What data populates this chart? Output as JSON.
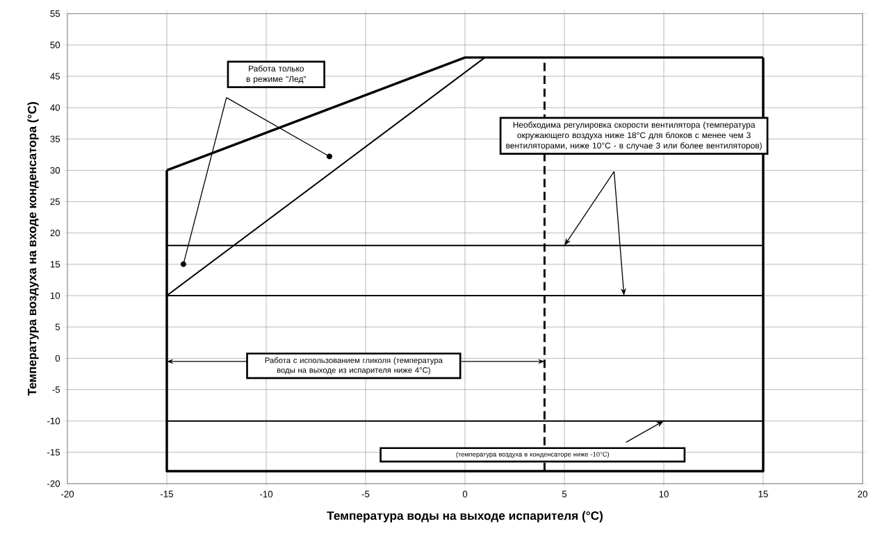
{
  "chart_data": {
    "type": "line",
    "xlabel": "Температура воды на выходе испарителя (°C)",
    "ylabel": "Температура воздуха на входе конденсатора (°C)",
    "xlim": [
      -20,
      20
    ],
    "xticks": [
      -20,
      -15,
      -10,
      -5,
      0,
      5,
      10,
      15,
      20
    ],
    "ylim": [
      -20,
      55
    ],
    "yticks": [
      -20,
      -15,
      -10,
      -5,
      0,
      5,
      10,
      15,
      20,
      25,
      30,
      35,
      40,
      45,
      50,
      55
    ],
    "grid": true,
    "marker": "none",
    "series": [
      {
        "color": "#000000",
        "x": [
          -15,
          0,
          15
        ],
        "values": [
          30,
          48,
          48
        ]
      },
      {
        "color": "#000000",
        "x": [
          -15,
          -15,
          15,
          15
        ],
        "values": [
          30,
          -18,
          -18,
          48
        ]
      },
      {
        "color": "#000000",
        "x": [
          -15,
          1
        ],
        "values": [
          10,
          48
        ]
      },
      {
        "color": "#000000",
        "x": [
          -15,
          15
        ],
        "values": [
          18,
          18
        ]
      },
      {
        "color": "#000000",
        "x": [
          -15,
          15
        ],
        "values": [
          10,
          10
        ]
      },
      {
        "color": "#000000",
        "x": [
          -15,
          15
        ],
        "values": [
          -10,
          -10
        ]
      },
      {
        "color": "#000000",
        "x": [
          4,
          4
        ],
        "values": [
          -18,
          48
        ],
        "line_style": "dashed"
      }
    ],
    "annotations": [
      "Работа только в режиме \"Лед\"",
      "Необходима регулировка скорости вентилятора (температура окружающего воздуха ниже 18°C для блоков с менее чем 3 вентиляторами, ниже 10°C - в случае 3 или более вентиляторов)",
      "Работа с использованием гликоля (температура воды на выходе из испарителя ниже 4°C)",
      "(температура воздуха в конденсаторе ниже -10°C)"
    ]
  }
}
